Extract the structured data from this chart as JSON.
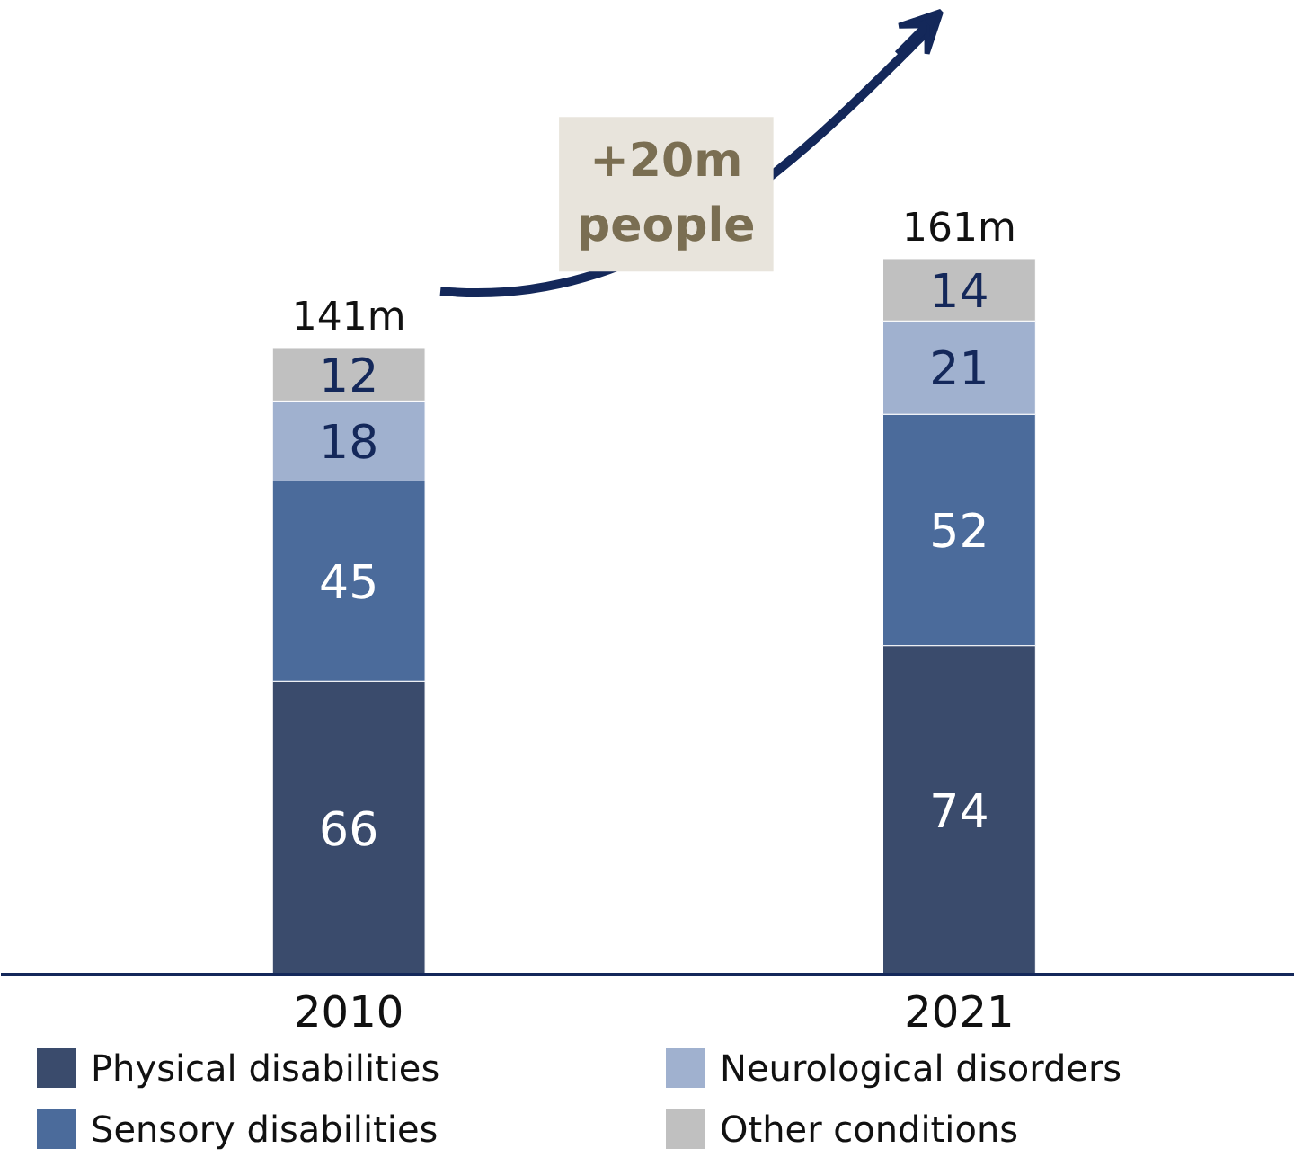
{
  "chart_data": {
    "type": "bar",
    "stacked": true,
    "categories": [
      "2010",
      "2021"
    ],
    "series": [
      {
        "name": "Physical disabilities",
        "color": "#3a4b6c",
        "values": [
          66,
          74
        ]
      },
      {
        "name": "Sensory disabilities",
        "color": "#4b6b9b",
        "values": [
          45,
          52
        ]
      },
      {
        "name": "Neurological disorders",
        "color": "#a0b1cf",
        "values": [
          18,
          21
        ]
      },
      {
        "name": "Other conditions",
        "color": "#c0c0c0",
        "values": [
          12,
          14
        ]
      }
    ],
    "data_labels": true,
    "totals": [
      "141m",
      "161m"
    ],
    "annotations": [
      "+20m\npeople"
    ],
    "legend": "bottom",
    "grid": false
  }
}
